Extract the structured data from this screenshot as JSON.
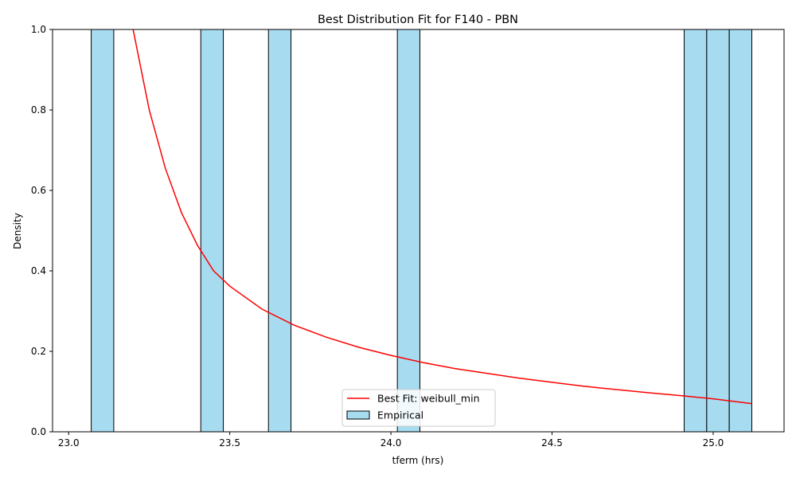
{
  "chart_data": {
    "type": "bar",
    "title": "Best Distribution Fit for F140 - PBN",
    "xlabel": "tferm (hrs)",
    "ylabel": "Density",
    "xlim": [
      22.95,
      25.22
    ],
    "ylim": [
      0,
      1.0
    ],
    "xticks": [
      "23.0",
      "23.5",
      "24.0",
      "24.5",
      "25.0"
    ],
    "xtick_values": [
      23.0,
      23.5,
      24.0,
      24.5,
      25.0
    ],
    "yticks": [
      "0.0",
      "0.2",
      "0.4",
      "0.6",
      "0.8",
      "1.0"
    ],
    "ytick_values": [
      0.0,
      0.2,
      0.4,
      0.6,
      0.8,
      1.0
    ],
    "grid": false,
    "legend_position": "lower center",
    "histogram": {
      "name": "Empirical",
      "color": "#a6dbf0",
      "edge_color": "#000000",
      "bins": [
        {
          "x0": 23.07,
          "x1": 23.14,
          "density": 1.0
        },
        {
          "x0": 23.41,
          "x1": 23.48,
          "density": 1.0
        },
        {
          "x0": 23.62,
          "x1": 23.69,
          "density": 1.0
        },
        {
          "x0": 24.02,
          "x1": 24.09,
          "density": 1.0
        },
        {
          "x0": 24.91,
          "x1": 24.98,
          "density": 1.0
        },
        {
          "x0": 24.98,
          "x1": 25.05,
          "density": 1.0
        },
        {
          "x0": 25.05,
          "x1": 25.12,
          "density": 1.0
        }
      ]
    },
    "fit_line": {
      "name": "Best Fit: weibull_min",
      "color": "#ff0000",
      "x": [
        23.2,
        23.25,
        23.3,
        23.35,
        23.4,
        23.45,
        23.5,
        23.6,
        23.7,
        23.8,
        23.9,
        24.0,
        24.1,
        24.2,
        24.3,
        24.4,
        24.5,
        24.6,
        24.7,
        24.8,
        24.9,
        25.0,
        25.12
      ],
      "y": [
        1.0,
        0.8,
        0.655,
        0.545,
        0.463,
        0.4,
        0.362,
        0.305,
        0.265,
        0.235,
        0.21,
        0.19,
        0.172,
        0.157,
        0.145,
        0.133,
        0.123,
        0.113,
        0.105,
        0.097,
        0.09,
        0.082,
        0.07
      ]
    }
  }
}
